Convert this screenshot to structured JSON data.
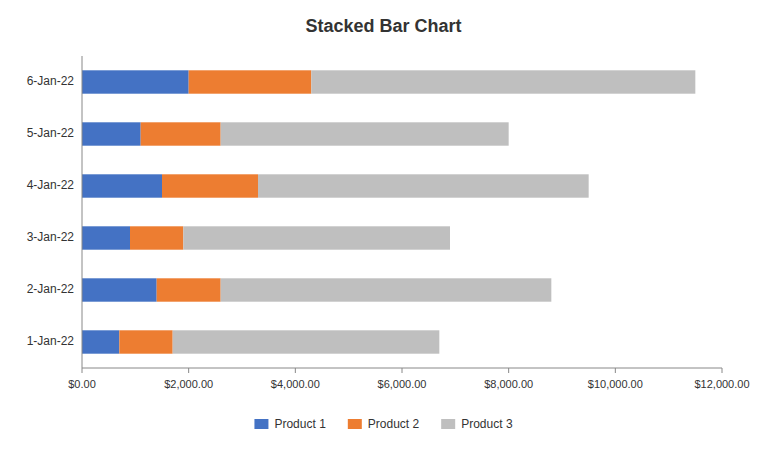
{
  "chart_data": {
    "type": "bar",
    "title": "Stacked Bar Chart",
    "orientation": "horizontal",
    "stacked": true,
    "categories": [
      "1-Jan-22",
      "2-Jan-22",
      "3-Jan-22",
      "4-Jan-22",
      "5-Jan-22",
      "6-Jan-22"
    ],
    "series": [
      {
        "name": "Product 1",
        "color": "#4472C4",
        "values": [
          700,
          1400,
          900,
          1500,
          1100,
          2000
        ]
      },
      {
        "name": "Product 2",
        "color": "#ED7D31",
        "values": [
          1000,
          1200,
          1000,
          1800,
          1500,
          2300
        ]
      },
      {
        "name": "Product 3",
        "color": "#BFBFBF",
        "values": [
          5000,
          6200,
          5000,
          6200,
          5400,
          7200
        ]
      }
    ],
    "xlim": [
      0,
      12000
    ],
    "xticks": [
      {
        "value": 0,
        "label": "$0.00"
      },
      {
        "value": 2000,
        "label": "$2,000.00"
      },
      {
        "value": 4000,
        "label": "$4,000.00"
      },
      {
        "value": 6000,
        "label": "$6,000.00"
      },
      {
        "value": 8000,
        "label": "$8,000.00"
      },
      {
        "value": 10000,
        "label": "$10,000.00"
      },
      {
        "value": 12000,
        "label": "$12,000.00"
      }
    ],
    "grid": false,
    "legend": "bottom"
  }
}
